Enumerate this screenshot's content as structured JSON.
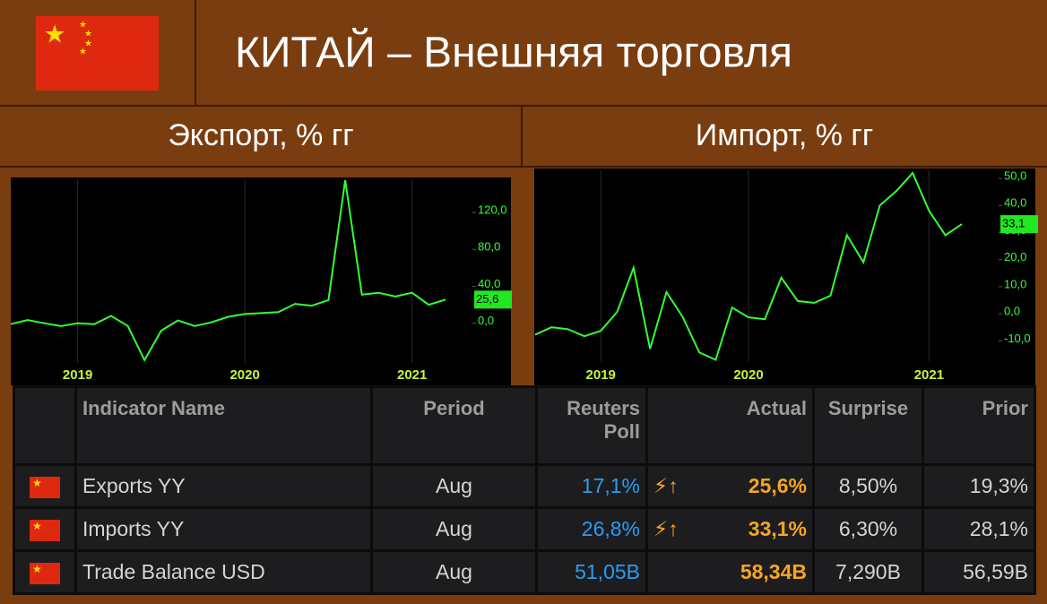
{
  "header": {
    "title": "КИТАЙ – Внешняя торговля"
  },
  "chart_data": [
    {
      "type": "line",
      "title": "Экспорт, % гг",
      "categories": [
        null,
        null,
        null,
        null,
        "2019",
        null,
        null,
        null,
        null,
        null,
        null,
        null,
        null,
        null,
        "2020",
        null,
        null,
        null,
        null,
        null,
        null,
        null,
        null,
        null,
        "2021",
        null,
        null
      ],
      "series": [
        {
          "name": "Exports YY",
          "color": "#33ff33",
          "values": [
            -1,
            3.5,
            0,
            -3,
            0,
            -1,
            8,
            -3,
            -40,
            -8,
            3,
            -3,
            1,
            7,
            10,
            11,
            12,
            21,
            19,
            25,
            155,
            31,
            33,
            29,
            33,
            20,
            25.6
          ]
        }
      ],
      "last_value_label": "25,6",
      "ylim": [
        -43,
        156
      ],
      "yticks": [
        {
          "value": 0,
          "label": "0,0"
        },
        {
          "value": 40,
          "label": "40,0"
        },
        {
          "value": 80,
          "label": "80,0"
        },
        {
          "value": 120,
          "label": "120,0"
        }
      ]
    },
    {
      "type": "line",
      "title": "Импорт, % гг",
      "categories": [
        null,
        null,
        null,
        null,
        "2019",
        null,
        null,
        null,
        null,
        null,
        null,
        null,
        null,
        "2020",
        null,
        null,
        null,
        null,
        null,
        null,
        null,
        null,
        null,
        null,
        "2021",
        null,
        null
      ],
      "series": [
        {
          "name": "Imports YY",
          "color": "#33ff33",
          "values": [
            -7.7,
            -5,
            -5.7,
            -8.3,
            -6.3,
            0.7,
            17,
            -13,
            8,
            -1.3,
            -14.3,
            -17,
            2.3,
            -1.3,
            -2,
            13.3,
            4.7,
            4,
            6.7,
            29,
            19,
            40,
            45.3,
            52,
            38,
            29,
            33.1
          ]
        }
      ],
      "last_value_label": "33,1",
      "ylim": [
        -17.5,
        53
      ],
      "yticks": [
        {
          "value": -10,
          "label": "-10,0"
        },
        {
          "value": 0,
          "label": "0,0"
        },
        {
          "value": 10,
          "label": "10,0"
        },
        {
          "value": 20,
          "label": "20,0"
        },
        {
          "value": 30,
          "label": "30,0"
        },
        {
          "value": 40,
          "label": "40,0"
        },
        {
          "value": 50,
          "label": "50,0"
        }
      ]
    }
  ],
  "table": {
    "header": [
      "Indicator Name",
      "Period",
      "Reuters Poll",
      "Actual",
      "Surprise",
      "Prior"
    ],
    "rows": [
      [
        "Exports YY",
        "Aug",
        "17,1%",
        "25,6%",
        "8,50%",
        "19,3%"
      ],
      [
        "Imports YY",
        "Aug",
        "26,8%",
        "33,1%",
        "6,30%",
        "28,1%"
      ],
      [
        "Trade Balance USD",
        "Aug",
        "51,05B",
        "58,34B",
        "7,290B",
        "56,59B"
      ]
    ]
  }
}
